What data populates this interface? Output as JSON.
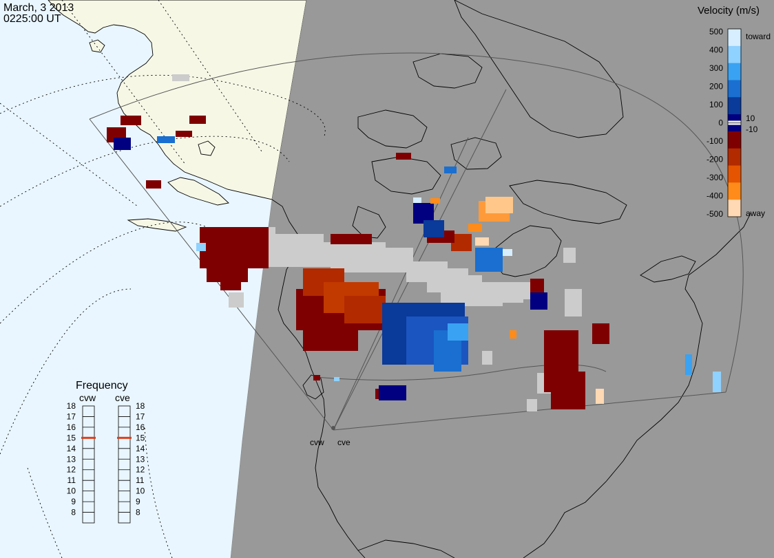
{
  "header": {
    "date": "March, 3 2013",
    "time": "0225:00 UT"
  },
  "colorbar": {
    "title": "Velocity (m/s)",
    "ticks": [
      "500",
      "400",
      "300",
      "200",
      "100",
      "0",
      "-100",
      "-200",
      "-300",
      "-400",
      "-500"
    ],
    "label_toward": "toward",
    "label_away": "away",
    "label_pos": "10",
    "label_neg": "-10",
    "colors": [
      "#d6eeff",
      "#8fd1ff",
      "#3aa2f2",
      "#1a6fd0",
      "#0a3a9a",
      "#000080",
      "#7f0000",
      "#b22a00",
      "#e55400",
      "#ff8c1a",
      "#ffd9b3"
    ]
  },
  "frequency": {
    "title": "Frequency",
    "radars": [
      {
        "name": "cvw",
        "value": 15
      },
      {
        "name": "cve",
        "value": 15
      }
    ],
    "scale": [
      "18",
      "17",
      "16",
      "15",
      "14",
      "13",
      "12",
      "11",
      "10",
      "9",
      "8"
    ],
    "marker_color": "#e0401a"
  },
  "radar_sites": {
    "west": "cvw",
    "east": "cve"
  },
  "colors": {
    "night": "#999999",
    "ocean_day": "#e9f6ff",
    "land_day": "#f7f7e6",
    "ground_scatter": "#cccccc"
  }
}
